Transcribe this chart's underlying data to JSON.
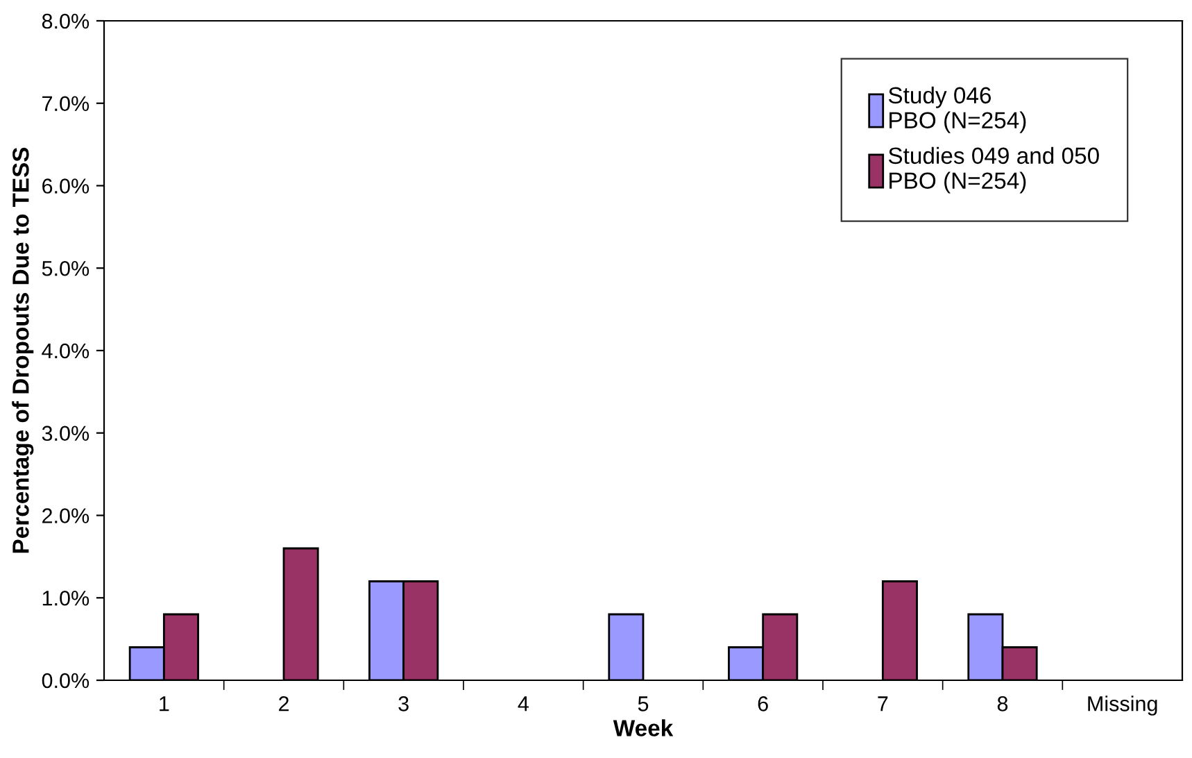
{
  "chart_data": {
    "type": "bar",
    "xlabel": "Week",
    "ylabel": "Percentage of Dropouts Due to TESS",
    "categories": [
      "1",
      "2",
      "3",
      "4",
      "5",
      "6",
      "7",
      "8",
      "Missing"
    ],
    "series": [
      {
        "name": "Study 046\nPBO (N=254)",
        "color": "#9999ff",
        "values": [
          0.4,
          0,
          1.2,
          0,
          0.8,
          0.4,
          0,
          0.8,
          0
        ]
      },
      {
        "name": "Studies 049 and 050\nPBO (N=254)",
        "color": "#993366",
        "values": [
          0.8,
          1.6,
          1.2,
          0,
          0,
          0.8,
          1.2,
          0.4,
          0
        ]
      }
    ],
    "ylim": [
      0,
      8
    ],
    "yticks": [
      {
        "value": 0,
        "label": "0.0%"
      },
      {
        "value": 1,
        "label": "1.0%"
      },
      {
        "value": 2,
        "label": "2.0%"
      },
      {
        "value": 3,
        "label": "3.0%"
      },
      {
        "value": 4,
        "label": "4.0%"
      },
      {
        "value": 5,
        "label": "5.0%"
      },
      {
        "value": 6,
        "label": "6.0%"
      },
      {
        "value": 7,
        "label": "7.0%"
      },
      {
        "value": 8,
        "label": "8.0%"
      }
    ],
    "grid": false,
    "legend": "top right"
  }
}
